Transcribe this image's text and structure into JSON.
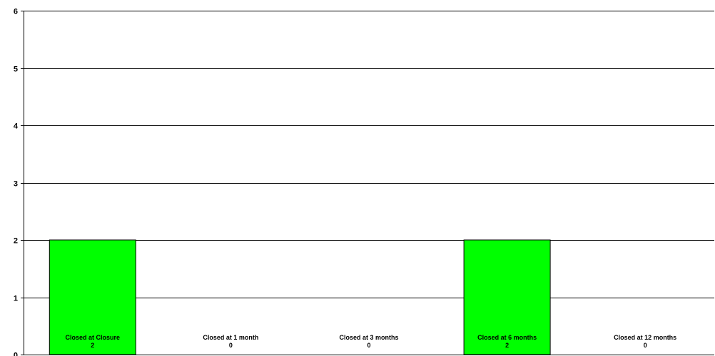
{
  "chart_data": {
    "type": "bar",
    "title": "",
    "xlabel": "",
    "ylabel": "",
    "categories": [
      "Closed at Closure",
      "Closed at 1 month",
      "Closed at 3 months",
      "Closed at 6 months",
      "Closed at 12 months"
    ],
    "values": [
      2,
      0,
      0,
      2,
      0
    ],
    "ylim": [
      0,
      6
    ],
    "yticks": [
      0,
      1,
      2,
      3,
      4,
      5,
      6
    ],
    "grid": true,
    "legend": "none",
    "bar_color": "#00ff00",
    "bar_outline_color": "#000000",
    "gridline_color": "#000000"
  }
}
